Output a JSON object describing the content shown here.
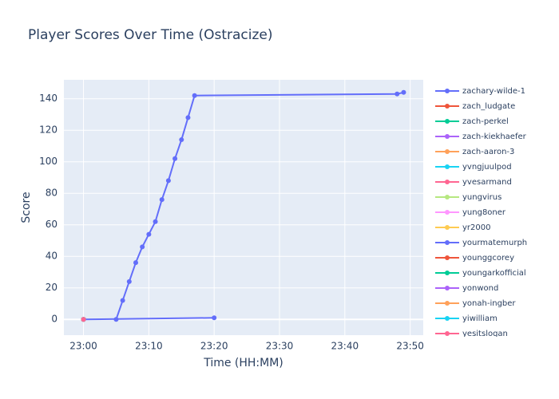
{
  "chart_data": {
    "type": "line",
    "title": "Player Scores Over Time (Ostracize)",
    "x_label": "Time (HH:MM)",
    "y_label": "Score",
    "xlim": [
      "22:57",
      "23:52"
    ],
    "xticks": [
      "23:00",
      "23:10",
      "23:20",
      "23:30",
      "23:40",
      "23:50"
    ],
    "ylim": [
      -10,
      152
    ],
    "yticks": [
      0,
      20,
      40,
      60,
      80,
      100,
      120,
      140
    ],
    "grid": true,
    "series": [
      {
        "name": "zachary-wilde-1",
        "color": "#636efa",
        "x": [
          "23:05",
          "23:06",
          "23:07",
          "23:08",
          "23:09",
          "23:10",
          "23:11",
          "23:12",
          "23:13",
          "23:14",
          "23:15",
          "23:16",
          "23:17",
          "23:48",
          "23:49"
        ],
        "values": [
          0,
          12,
          24,
          36,
          46,
          54,
          62,
          76,
          88,
          102,
          114,
          128,
          142,
          143,
          144
        ]
      },
      {
        "name": "zach_ludgate",
        "color": "#EF553B",
        "x": [
          "23:00"
        ],
        "values": [
          0
        ]
      },
      {
        "name": "zach-perkel",
        "color": "#00cc96",
        "x": [
          "23:00"
        ],
        "values": [
          0
        ]
      },
      {
        "name": "zach-kiekhaefer",
        "color": "#ab63fa",
        "x": [
          "23:00"
        ],
        "values": [
          0
        ]
      },
      {
        "name": "zach-aaron-3",
        "color": "#FFA15A",
        "x": [
          "23:00"
        ],
        "values": [
          0
        ]
      },
      {
        "name": "yvngjuulpod",
        "color": "#19d3f3",
        "x": [
          "23:00"
        ],
        "values": [
          0
        ]
      },
      {
        "name": "yvesarmand",
        "color": "#FF6692",
        "x": [
          "23:00"
        ],
        "values": [
          0
        ]
      },
      {
        "name": "yungvirus",
        "color": "#B6E880",
        "x": [
          "23:00"
        ],
        "values": [
          0
        ]
      },
      {
        "name": "yung8oner",
        "color": "#FF97FF",
        "x": [
          "23:00"
        ],
        "values": [
          0
        ]
      },
      {
        "name": "yr2000",
        "color": "#FECB52",
        "x": [
          "23:00"
        ],
        "values": [
          0
        ]
      },
      {
        "name": "yourmatemurph",
        "color": "#636efa",
        "x": [
          "23:00",
          "23:20"
        ],
        "values": [
          0,
          1
        ]
      },
      {
        "name": "younggcorey",
        "color": "#EF553B",
        "x": [
          "23:00"
        ],
        "values": [
          0
        ]
      },
      {
        "name": "youngarkofficial",
        "color": "#00cc96",
        "x": [
          "23:00"
        ],
        "values": [
          0
        ]
      },
      {
        "name": "yonwond",
        "color": "#ab63fa",
        "x": [
          "23:00"
        ],
        "values": [
          0
        ]
      },
      {
        "name": "yonah-ingber",
        "color": "#FFA15A",
        "x": [
          "23:00"
        ],
        "values": [
          0
        ]
      },
      {
        "name": "yiwilliam",
        "color": "#19d3f3",
        "x": [
          "23:00"
        ],
        "values": [
          0
        ]
      },
      {
        "name": "yesitslogan",
        "color": "#FF6692",
        "x": [
          "23:00"
        ],
        "values": [
          0
        ]
      }
    ]
  }
}
